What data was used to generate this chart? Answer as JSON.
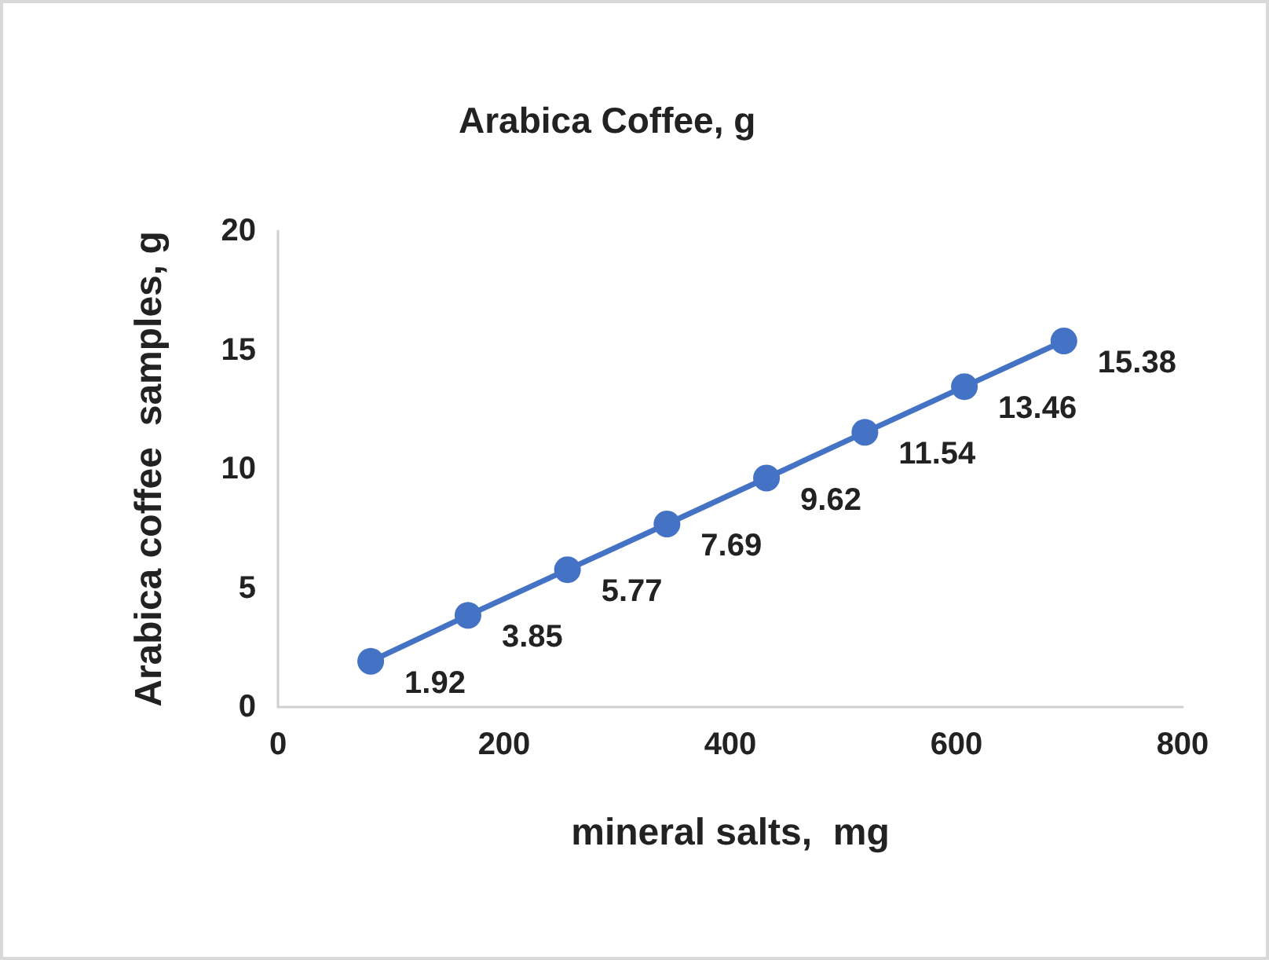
{
  "chart_data": {
    "type": "line",
    "title": "Arabica Coffee, g",
    "xlabel": "mineral salts,  mg",
    "ylabel": "Arabica coffee  samples, g",
    "x": [
      82,
      168,
      256,
      344,
      432,
      519,
      607,
      695
    ],
    "series": [
      {
        "color": "#4472c4",
        "values": [
          1.92,
          3.85,
          5.77,
          7.69,
          9.62,
          11.54,
          13.46,
          15.38
        ]
      }
    ],
    "xlim": [
      0,
      800
    ],
    "xticks": [
      0,
      200,
      400,
      600,
      800
    ],
    "ylim": [
      0,
      20
    ],
    "yticks": [
      0,
      5,
      10,
      15,
      20
    ],
    "grid": false,
    "marker": "circle",
    "line_style": "solid",
    "data_labels": true
  }
}
